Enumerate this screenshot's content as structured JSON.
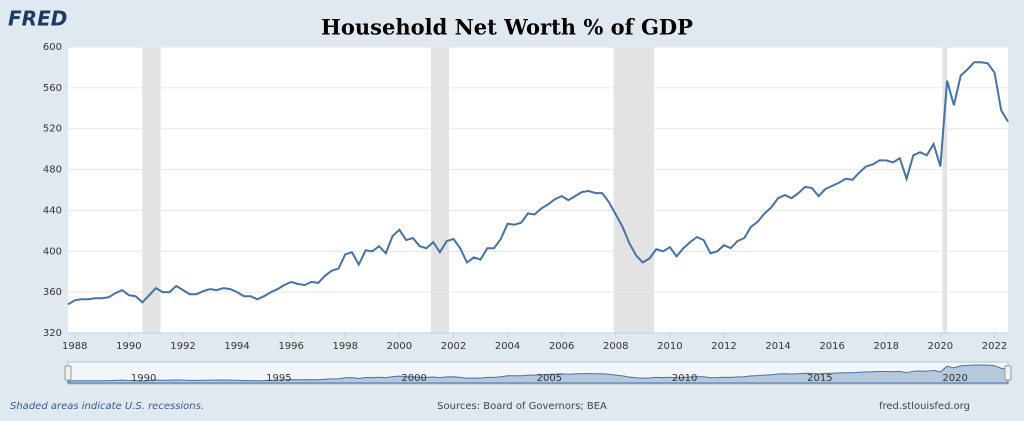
{
  "logo": "FRED",
  "footer": {
    "left": "Shaded areas indicate U.S. recessions.",
    "center": "Sources: Board of Governors; BEA",
    "right": "fred.stlouisfed.org"
  },
  "chart_data": {
    "type": "line",
    "title": "Household Net Worth % of GDP",
    "x": [
      1987.75,
      1988,
      1988.25,
      1988.5,
      1988.75,
      1989,
      1989.25,
      1989.5,
      1989.75,
      1990,
      1990.25,
      1990.5,
      1990.75,
      1991,
      1991.25,
      1991.5,
      1991.75,
      1992,
      1992.25,
      1992.5,
      1992.75,
      1993,
      1993.25,
      1993.5,
      1993.75,
      1994,
      1994.25,
      1994.5,
      1994.75,
      1995,
      1995.25,
      1995.5,
      1995.75,
      1996,
      1996.25,
      1996.5,
      1996.75,
      1997,
      1997.25,
      1997.5,
      1997.75,
      1998,
      1998.25,
      1998.5,
      1998.75,
      1999,
      1999.25,
      1999.5,
      1999.75,
      2000,
      2000.25,
      2000.5,
      2000.75,
      2001,
      2001.25,
      2001.5,
      2001.75,
      2002,
      2002.25,
      2002.5,
      2002.75,
      2003,
      2003.25,
      2003.5,
      2003.75,
      2004,
      2004.25,
      2004.5,
      2004.75,
      2005,
      2005.25,
      2005.5,
      2005.75,
      2006,
      2006.25,
      2006.5,
      2006.75,
      2007,
      2007.25,
      2007.5,
      2007.75,
      2008,
      2008.25,
      2008.5,
      2008.75,
      2009,
      2009.25,
      2009.5,
      2009.75,
      2010,
      2010.25,
      2010.5,
      2010.75,
      2011,
      2011.25,
      2011.5,
      2011.75,
      2012,
      2012.25,
      2012.5,
      2012.75,
      2013,
      2013.25,
      2013.5,
      2013.75,
      2014,
      2014.25,
      2014.5,
      2014.75,
      2015,
      2015.25,
      2015.5,
      2015.75,
      2016,
      2016.25,
      2016.5,
      2016.75,
      2017,
      2017.25,
      2017.5,
      2017.75,
      2018,
      2018.25,
      2018.5,
      2018.75,
      2019,
      2019.25,
      2019.5,
      2019.75,
      2020,
      2020.25,
      2020.5,
      2020.75,
      2021,
      2021.25,
      2021.5,
      2021.75,
      2022,
      2022.25,
      2022.5
    ],
    "series": [
      {
        "color": "#4572a7",
        "values": [
          348,
          352,
          353,
          353,
          354,
          354,
          355,
          359,
          362,
          357,
          356,
          350,
          357,
          364,
          360,
          360,
          366,
          362,
          358,
          358,
          361,
          363,
          362,
          364,
          363,
          360,
          356,
          356,
          353,
          356,
          360,
          363,
          367,
          370,
          368,
          367,
          370,
          369,
          376,
          381,
          383,
          397,
          399,
          387,
          401,
          400,
          405,
          398,
          415,
          421,
          411,
          413,
          405,
          403,
          409,
          399,
          410,
          412,
          403,
          389,
          394,
          392,
          403,
          403,
          412,
          427,
          426,
          428,
          437,
          436,
          442,
          446,
          451,
          454,
          450,
          454,
          458,
          459,
          457,
          457,
          448,
          436,
          424,
          408,
          396,
          389,
          393,
          402,
          400,
          404,
          395,
          403,
          409,
          414,
          411,
          398,
          400,
          406,
          403,
          410,
          413,
          424,
          429,
          437,
          443,
          452,
          455,
          452,
          457,
          463,
          462,
          454,
          461,
          464,
          467,
          471,
          470,
          477,
          483,
          485,
          489,
          489,
          487,
          491,
          471,
          494,
          497,
          494,
          505,
          483,
          567,
          543,
          572,
          578,
          585,
          585,
          584,
          575,
          538,
          527
        ]
      }
    ],
    "recessions": [
      [
        1990.5,
        1991.17
      ],
      [
        2001.17,
        2001.83
      ],
      [
        2007.92,
        2009.42
      ],
      [
        2020.08,
        2020.25
      ]
    ],
    "recession_color": "#e3e3e3",
    "xlim": [
      1987.75,
      2022.5
    ],
    "xticks": [
      1988,
      1990,
      1992,
      1994,
      1996,
      1998,
      2000,
      2002,
      2004,
      2006,
      2008,
      2010,
      2012,
      2014,
      2016,
      2018,
      2020,
      2022
    ],
    "ylim": [
      320,
      600
    ],
    "yticks": [
      320,
      360,
      400,
      440,
      480,
      520,
      560,
      600
    ],
    "grid": true,
    "navigator_ticks": [
      1990,
      1995,
      2000,
      2005,
      2010,
      2015,
      2020
    ]
  }
}
